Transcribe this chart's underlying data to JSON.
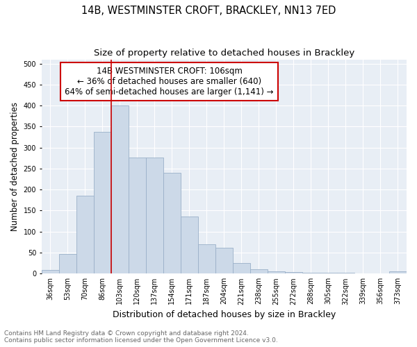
{
  "title": "14B, WESTMINSTER CROFT, BRACKLEY, NN13 7ED",
  "subtitle": "Size of property relative to detached houses in Brackley",
  "xlabel": "Distribution of detached houses by size in Brackley",
  "ylabel": "Number of detached properties",
  "bar_labels": [
    "36sqm",
    "53sqm",
    "70sqm",
    "86sqm",
    "103sqm",
    "120sqm",
    "137sqm",
    "154sqm",
    "171sqm",
    "187sqm",
    "204sqm",
    "221sqm",
    "238sqm",
    "255sqm",
    "272sqm",
    "288sqm",
    "305sqm",
    "322sqm",
    "339sqm",
    "356sqm",
    "373sqm"
  ],
  "bar_values": [
    8,
    46,
    185,
    337,
    400,
    277,
    277,
    240,
    136,
    70,
    62,
    25,
    11,
    5,
    3,
    2,
    2,
    2,
    1,
    1,
    5
  ],
  "bar_color": "#ccd9e8",
  "bar_edge_color": "#9ab0c8",
  "vline_x_index": 4,
  "vline_color": "#cc0000",
  "annotation_text": "14B WESTMINSTER CROFT: 106sqm\n← 36% of detached houses are smaller (640)\n64% of semi-detached houses are larger (1,141) →",
  "annotation_box_facecolor": "#ffffff",
  "annotation_box_edgecolor": "#cc0000",
  "ylim": [
    0,
    510
  ],
  "yticks": [
    0,
    50,
    100,
    150,
    200,
    250,
    300,
    350,
    400,
    450,
    500
  ],
  "plot_bg_color": "#e8eef5",
  "grid_color": "#ffffff",
  "footer_text": "Contains HM Land Registry data © Crown copyright and database right 2024.\nContains public sector information licensed under the Open Government Licence v3.0.",
  "title_fontsize": 10.5,
  "subtitle_fontsize": 9.5,
  "xlabel_fontsize": 9,
  "ylabel_fontsize": 8.5,
  "tick_fontsize": 7,
  "annotation_fontsize": 8.5,
  "footer_fontsize": 6.5
}
